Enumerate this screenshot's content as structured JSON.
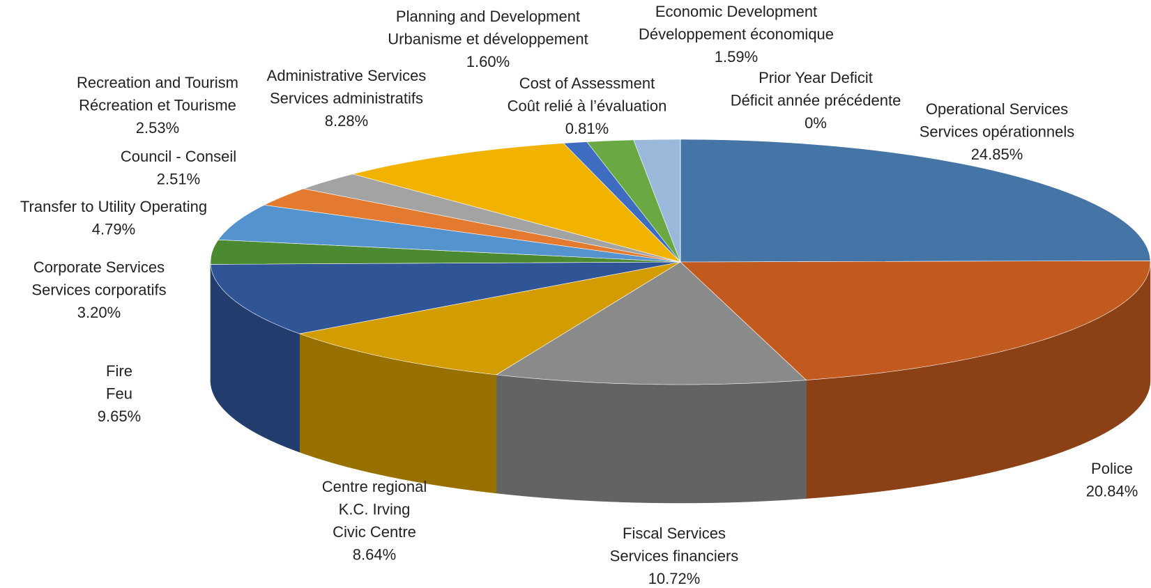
{
  "chart_data": {
    "type": "pie3d",
    "categories": [
      [
        "Operational Services",
        "Services opérationnels"
      ],
      [
        "Police"
      ],
      [
        "Fiscal Services",
        "Services financiers"
      ],
      [
        "Centre regional",
        "K.C. Irving",
        "Civic Centre"
      ],
      [
        "Fire",
        "Feu"
      ],
      [
        "Corporate Services",
        "Services corporatifs"
      ],
      [
        "Transfer to Utility Operating"
      ],
      [
        "Council - Conseil"
      ],
      [
        "Recreation and Tourism",
        "Récreation et Tourisme"
      ],
      [
        "Administrative Services",
        "Services administratifs"
      ],
      [
        "Cost of Assessment",
        "Coût relié à l’évaluation"
      ],
      [
        "Planning and Development",
        "Urbanisme et développement"
      ],
      [
        "Economic Development",
        "Développement économique"
      ],
      [
        "Prior Year Deficit",
        "Déficit année précédente"
      ]
    ],
    "values": [
      24.85,
      20.84,
      10.72,
      8.64,
      9.65,
      3.2,
      4.79,
      2.51,
      2.53,
      8.28,
      0.81,
      1.6,
      1.59,
      0
    ],
    "value_labels": [
      "24.85%",
      "20.84%",
      "10.72%",
      "8.64%",
      "9.65%",
      "3.20%",
      "4.79%",
      "2.51%",
      "2.53%",
      "8.28%",
      "0.81%",
      "1.60%",
      "1.59%",
      "0%"
    ],
    "colors": [
      "#4574a6",
      "#c2591f",
      "#8a8a8a",
      "#d39c00",
      "#2f5597",
      "#4b8a30",
      "#5593cf",
      "#e47a2f",
      "#a3a3a3",
      "#f2b300",
      "#3d6cc0",
      "#6aa843",
      "#9ab9da",
      "#264478"
    ]
  }
}
